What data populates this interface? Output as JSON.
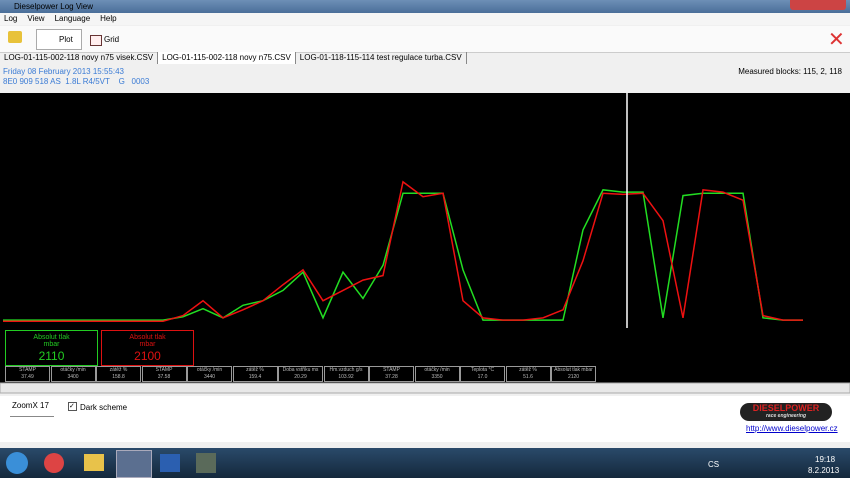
{
  "window": {
    "title": "Dieselpower Log View"
  },
  "menu": [
    "Log",
    "View",
    "Language",
    "Help"
  ],
  "toolbar": {
    "plot": "Plot",
    "grid": "Grid"
  },
  "tabs": [
    "LOG-01-115-002-118 novy n75 visek.CSV",
    "LOG-01-115-002-118 novy n75.CSV",
    "LOG-01-118-115-114 test regulace turba.CSV"
  ],
  "info": {
    "date": "Friday 08 February 2013 15:55:43",
    "ecu": "8E0 909 518 AS  1.8L R4/5VT    G   0003",
    "blocks": "Measured blocks: 115, 2, 118"
  },
  "chart_data": {
    "type": "line",
    "ylim": [
      450,
      2970
    ],
    "series": [
      {
        "color": "#22dd22",
        "values": [
          1000,
          1000,
          1000,
          1000,
          1000,
          1000,
          1000,
          1000,
          1000,
          1030,
          1100,
          1020,
          1130,
          1170,
          1260,
          1420,
          1020,
          1420,
          1190,
          1480,
          2110,
          2110,
          2110,
          1440,
          1000,
          1000,
          1000,
          1000,
          1000,
          1790,
          2140,
          2120,
          2120,
          1020,
          2090,
          2110,
          2110,
          2110,
          1020,
          1000,
          1000
        ]
      },
      {
        "color": "#ee1111",
        "values": [
          990,
          990,
          990,
          990,
          990,
          990,
          990,
          990,
          990,
          1040,
          1170,
          1020,
          1090,
          1170,
          1310,
          1440,
          1170,
          1260,
          1350,
          1390,
          2210,
          2080,
          2110,
          1170,
          1020,
          1000,
          1000,
          1020,
          1090,
          1520,
          2110,
          2100,
          2110,
          1870,
          1020,
          2140,
          2120,
          2050,
          1040,
          1000,
          1000
        ]
      }
    ]
  },
  "gauges": [
    {
      "label": "Absolut tlak",
      "unit": "mbar",
      "value": "2110",
      "color": "#22cc22"
    },
    {
      "label": "Absolut tlak",
      "unit": "mbar",
      "value": "2100",
      "color": "#dd1111"
    }
  ],
  "cells": [
    {
      "label": "STAMP",
      "value": "37.49"
    },
    {
      "label": "otáčky /min",
      "value": "3400"
    },
    {
      "label": "zátěž %",
      "value": "158.8"
    },
    {
      "label": "STAMP",
      "value": "37.58"
    },
    {
      "label": "otáčky /min",
      "value": "3440"
    },
    {
      "label": "zátěž %",
      "value": "159.4"
    },
    {
      "label": "Doba vstřiku ms",
      "value": "20.29"
    },
    {
      "label": "Hm.vzduch g/s",
      "value": "103.92"
    },
    {
      "label": "STAMP",
      "value": "37.28"
    },
    {
      "label": "otáčky /min",
      "value": "3350"
    },
    {
      "label": "Teplota °C",
      "value": "17.0"
    },
    {
      "label": "zátěž %",
      "value": "51.6"
    },
    {
      "label": "Absolut tlak mbar",
      "value": "2120"
    }
  ],
  "zoom": "ZoomX 17",
  "dark_scheme": "Dark scheme",
  "logo": {
    "name": "DIESELPOWER",
    "tagline": "race engineering"
  },
  "link": "http://www.dieselpower.cz",
  "taskbar": {
    "lang": "CS",
    "time": "19:18",
    "date": "8.2.2013"
  }
}
